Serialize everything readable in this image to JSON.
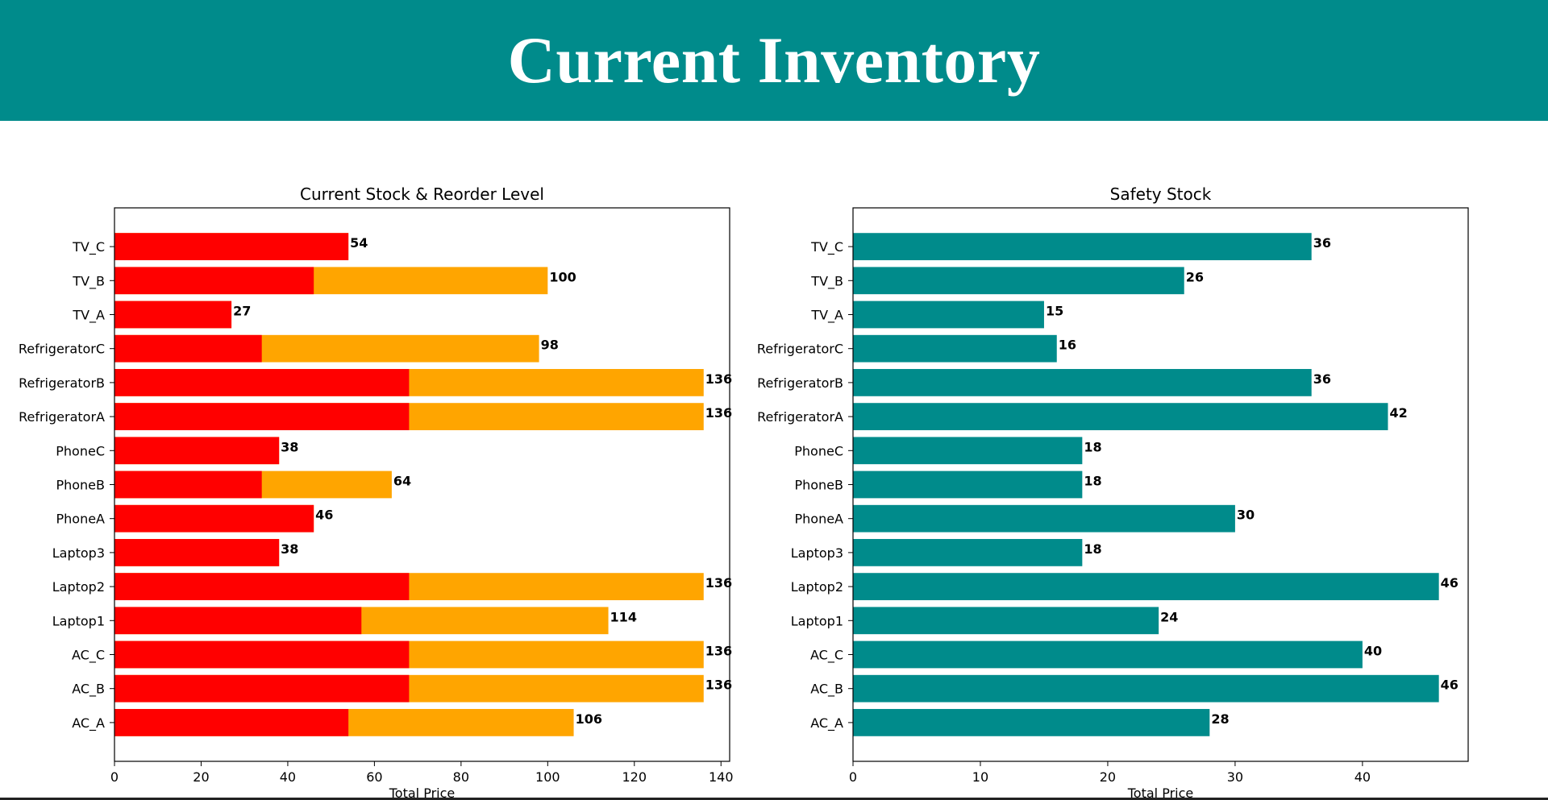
{
  "header": {
    "title": "Current Inventory"
  },
  "colors": {
    "banner": "#008b8b",
    "current_stock": "#ff0000",
    "reorder_level": "#ffa500",
    "safety_stock": "#008b8b"
  },
  "chart_data": [
    {
      "type": "bar",
      "orientation": "horizontal",
      "stacked": "overlay",
      "title": "Current Stock & Reorder Level",
      "xlabel": "Total Price",
      "ylabel": "",
      "xlim": [
        0,
        142
      ],
      "xticks": [
        0,
        20,
        40,
        60,
        80,
        100,
        120,
        140
      ],
      "categories": [
        "AC_A",
        "AC_B",
        "AC_C",
        "Laptop1",
        "Laptop2",
        "Laptop3",
        "PhoneA",
        "PhoneB",
        "PhoneC",
        "RefrigeratorA",
        "RefrigeratorB",
        "RefrigeratorC",
        "TV_A",
        "TV_B",
        "TV_C"
      ],
      "series": [
        {
          "color": "#ffa500",
          "values": [
            106,
            136,
            136,
            114,
            136,
            38,
            46,
            64,
            38,
            136,
            136,
            98,
            27,
            100,
            54
          ]
        },
        {
          "color": "#ff0000",
          "values": [
            54,
            68,
            68,
            57,
            68,
            38,
            46,
            34,
            38,
            68,
            68,
            34,
            27,
            46,
            54
          ]
        }
      ],
      "data_labels": [
        "106",
        "136",
        "136",
        "114",
        "136",
        "38",
        "46",
        "64",
        "38",
        "136",
        "136",
        "98",
        "27",
        "100",
        "54"
      ],
      "legend": "none",
      "grid": false
    },
    {
      "type": "bar",
      "orientation": "horizontal",
      "title": "Safety Stock",
      "xlabel": "Total Price",
      "ylabel": "",
      "xlim": [
        0,
        48.3
      ],
      "xticks": [
        0,
        10,
        20,
        30,
        40
      ],
      "categories": [
        "AC_A",
        "AC_B",
        "AC_C",
        "Laptop1",
        "Laptop2",
        "Laptop3",
        "PhoneA",
        "PhoneB",
        "PhoneC",
        "RefrigeratorA",
        "RefrigeratorB",
        "RefrigeratorC",
        "TV_A",
        "TV_B",
        "TV_C"
      ],
      "series": [
        {
          "color": "#008b8b",
          "values": [
            28,
            46,
            40,
            24,
            46,
            18,
            30,
            18,
            18,
            42,
            36,
            16,
            15,
            26,
            36
          ]
        }
      ],
      "data_labels": [
        "28",
        "46",
        "40",
        "24",
        "46",
        "18",
        "30",
        "18",
        "18",
        "42",
        "36",
        "16",
        "15",
        "26",
        "36"
      ],
      "legend": "none",
      "grid": false
    }
  ]
}
